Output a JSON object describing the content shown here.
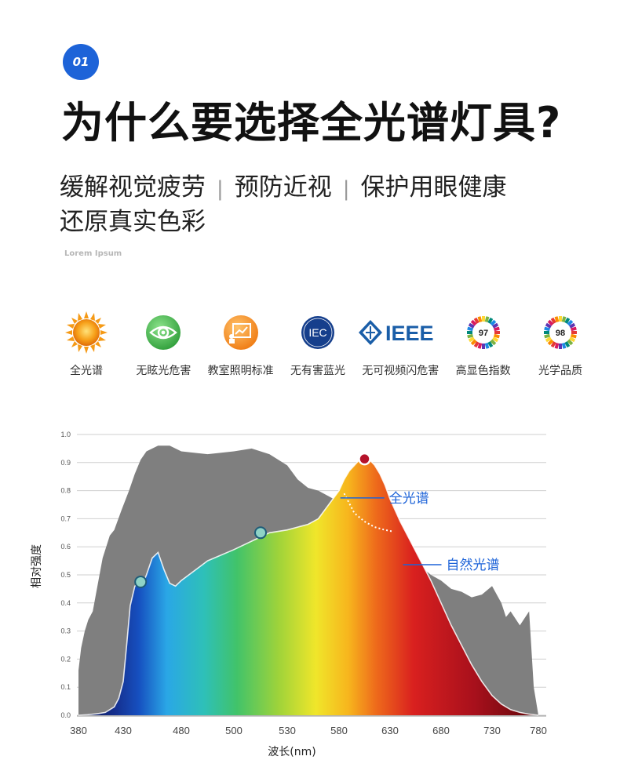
{
  "header": {
    "badge": "01",
    "title": "为什么要选择全光谱灯具?",
    "benefits": [
      "缓解视觉疲劳",
      "预防近视",
      "保护用眼健康",
      "还原真实色彩"
    ],
    "separator": "|",
    "lorem": "Lorem Ipsum"
  },
  "features": [
    {
      "label": "全光谱",
      "icon": "sun-icon"
    },
    {
      "label": "无眩光危害",
      "icon": "eye-icon"
    },
    {
      "label": "教室照明标准",
      "icon": "classroom-board-icon"
    },
    {
      "label": "无有害蓝光",
      "icon": "iec-logo-icon",
      "text": "IEC"
    },
    {
      "label": "无可视频闪危害",
      "icon": "ieee-logo-icon",
      "text": "IEEE"
    },
    {
      "label": "高显色指数",
      "icon": "cri-97-icon",
      "text": "97"
    },
    {
      "label": "光学品质",
      "icon": "cri-98-icon",
      "text": "98"
    }
  ],
  "colors": {
    "accent": "#1d63d8",
    "natural_fill": "#7f7f7f",
    "marker_red": "#b5122a",
    "marker_teal": "#8fd3c6"
  },
  "chart_data": {
    "type": "area",
    "xlabel": "波长(nm)",
    "ylabel": "相对强度",
    "xlim": [
      380,
      780
    ],
    "ylim": [
      0,
      1.0
    ],
    "x_ticks": [
      380,
      430,
      480,
      500,
      530,
      580,
      630,
      680,
      730,
      780
    ],
    "x_tick_labels": [
      "380",
      "430",
      "480",
      "500",
      "530",
      "580",
      "630",
      "680",
      "730",
      "780"
    ],
    "y_ticks": [
      0.0,
      0.1,
      0.2,
      0.3,
      0.4,
      0.5,
      0.6,
      0.7,
      0.8,
      0.9,
      1.0
    ],
    "y_tick_labels": [
      "0.0",
      "0.1",
      "0.2",
      "0.3",
      "0.4",
      "0.5",
      "0.6",
      "0.7",
      "0.8",
      "0.9",
      "1.0"
    ],
    "grid": true,
    "series": [
      {
        "name": "自然光谱",
        "x": [
          380,
          383,
          387,
          391,
          396,
          400,
          407,
          415,
          420,
          428,
          435,
          440,
          445,
          450,
          460,
          470,
          475,
          480,
          490,
          500,
          510,
          520,
          530,
          540,
          550,
          560,
          570,
          580,
          590,
          600,
          610,
          620,
          630,
          640,
          650,
          660,
          670,
          680,
          690,
          700,
          710,
          720,
          730,
          740,
          745,
          750,
          760,
          770,
          775,
          780
        ],
        "y": [
          0.16,
          0.24,
          0.3,
          0.34,
          0.37,
          0.44,
          0.56,
          0.64,
          0.66,
          0.73,
          0.8,
          0.86,
          0.91,
          0.94,
          0.96,
          0.96,
          0.95,
          0.94,
          0.93,
          0.94,
          0.95,
          0.93,
          0.89,
          0.84,
          0.81,
          0.8,
          0.78,
          0.76,
          0.73,
          0.72,
          0.7,
          0.67,
          0.63,
          0.6,
          0.57,
          0.53,
          0.5,
          0.48,
          0.45,
          0.44,
          0.42,
          0.43,
          0.46,
          0.4,
          0.35,
          0.37,
          0.32,
          0.37,
          0.1,
          0.0
        ]
      },
      {
        "name": "全光谱",
        "x": [
          380,
          390,
          400,
          410,
          420,
          425,
          430,
          433,
          436,
          440,
          445,
          448,
          450,
          455,
          460,
          465,
          470,
          475,
          480,
          490,
          500,
          510,
          520,
          530,
          540,
          550,
          560,
          570,
          580,
          585,
          590,
          595,
          600,
          605,
          610,
          615,
          620,
          625,
          630,
          640,
          650,
          660,
          670,
          680,
          690,
          700,
          710,
          720,
          730,
          740,
          750,
          760,
          770,
          780
        ],
        "y": [
          0.0,
          0.002,
          0.005,
          0.01,
          0.03,
          0.06,
          0.12,
          0.25,
          0.39,
          0.46,
          0.475,
          0.48,
          0.5,
          0.56,
          0.58,
          0.52,
          0.47,
          0.46,
          0.48,
          0.55,
          0.59,
          0.62,
          0.65,
          0.66,
          0.67,
          0.68,
          0.7,
          0.75,
          0.8,
          0.84,
          0.87,
          0.89,
          0.91,
          0.913,
          0.91,
          0.89,
          0.86,
          0.82,
          0.77,
          0.69,
          0.62,
          0.55,
          0.48,
          0.4,
          0.32,
          0.25,
          0.18,
          0.12,
          0.07,
          0.04,
          0.02,
          0.01,
          0.004,
          0.0
        ]
      }
    ],
    "markers": [
      {
        "x": 445,
        "y": 0.475,
        "color": "teal"
      },
      {
        "x": 515,
        "y": 0.65,
        "color": "teal"
      },
      {
        "x": 605,
        "y": 0.913,
        "color": "red"
      }
    ],
    "dotted_path": {
      "x": [
        585,
        595,
        605,
        615,
        625,
        632
      ],
      "y": [
        0.79,
        0.72,
        0.69,
        0.67,
        0.66,
        0.655
      ]
    },
    "annotations": [
      {
        "text": "全光谱",
        "x": 629,
        "y": 0.763,
        "color": "#1d63d8"
      },
      {
        "text": "自然光谱",
        "x": 685,
        "y": 0.525,
        "color": "#1d63d8"
      }
    ]
  }
}
